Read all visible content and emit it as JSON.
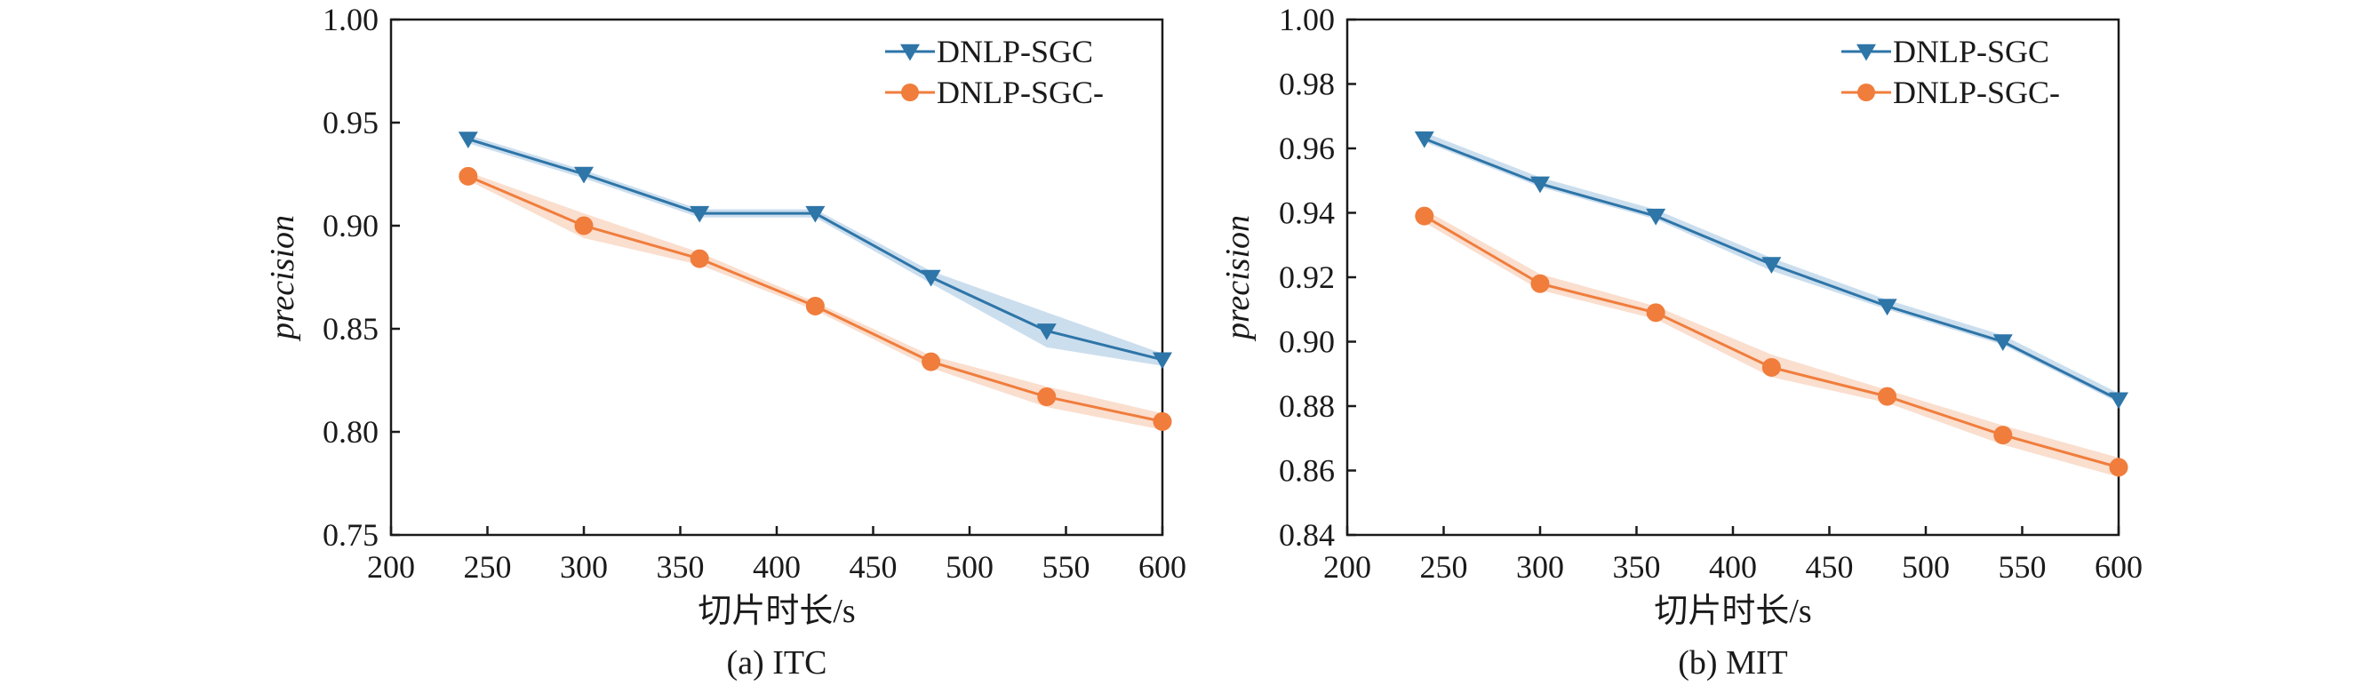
{
  "colors": {
    "series1": "#2e75a8",
    "series1_band": "#a9c8e2",
    "series2": "#f07d3c",
    "series2_band": "#f7c8ad",
    "axis": "#1a1a1a"
  },
  "chart_data": [
    {
      "type": "line",
      "caption": "(a)  ITC",
      "xlabel": "切片时长/s",
      "ylabel": "precision",
      "xlim": [
        200,
        600
      ],
      "ylim": [
        0.75,
        1.0
      ],
      "xticks": [
        "200",
        "250",
        "300",
        "350",
        "400",
        "450",
        "500",
        "550",
        "600"
      ],
      "yticks": [
        "0.75",
        "0.80",
        "0.85",
        "0.90",
        "0.95",
        "1.00"
      ],
      "legend": "top-right",
      "grid": false,
      "x": [
        240,
        300,
        360,
        420,
        480,
        540,
        600
      ],
      "series": [
        {
          "name": "DNLP-SGC",
          "marker": "triangle-down",
          "values": [
            0.942,
            0.925,
            0.906,
            0.906,
            0.875,
            0.849,
            0.835
          ],
          "band_low": [
            0.94,
            0.923,
            0.904,
            0.904,
            0.872,
            0.841,
            0.832
          ],
          "band_high": [
            0.944,
            0.927,
            0.908,
            0.908,
            0.878,
            0.858,
            0.838
          ]
        },
        {
          "name": "DNLP-SGC-",
          "marker": "circle",
          "values": [
            0.924,
            0.9,
            0.884,
            0.861,
            0.834,
            0.817,
            0.805
          ],
          "band_low": [
            0.922,
            0.894,
            0.881,
            0.859,
            0.831,
            0.812,
            0.801
          ],
          "band_high": [
            0.926,
            0.906,
            0.887,
            0.863,
            0.837,
            0.822,
            0.809
          ]
        }
      ]
    },
    {
      "type": "line",
      "caption": "(b)  MIT",
      "xlabel": "切片时长/s",
      "ylabel": "precision",
      "xlim": [
        200,
        600
      ],
      "ylim": [
        0.84,
        1.0
      ],
      "xticks": [
        "200",
        "250",
        "300",
        "350",
        "400",
        "450",
        "500",
        "550",
        "600"
      ],
      "yticks": [
        "0.84",
        "0.86",
        "0.88",
        "0.90",
        "0.92",
        "0.94",
        "0.96",
        "0.98",
        "1.00"
      ],
      "legend": "top-right",
      "grid": false,
      "x": [
        240,
        300,
        360,
        420,
        480,
        540,
        600
      ],
      "series": [
        {
          "name": "DNLP-SGC",
          "marker": "triangle-down",
          "values": [
            0.963,
            0.949,
            0.939,
            0.924,
            0.911,
            0.9,
            0.882
          ],
          "band_low": [
            0.962,
            0.948,
            0.938,
            0.922,
            0.91,
            0.899,
            0.881
          ],
          "band_high": [
            0.965,
            0.951,
            0.941,
            0.926,
            0.913,
            0.902,
            0.884
          ]
        },
        {
          "name": "DNLP-SGC-",
          "marker": "circle",
          "values": [
            0.939,
            0.918,
            0.909,
            0.892,
            0.883,
            0.871,
            0.861
          ],
          "band_low": [
            0.937,
            0.916,
            0.907,
            0.889,
            0.881,
            0.868,
            0.858
          ],
          "band_high": [
            0.941,
            0.921,
            0.911,
            0.896,
            0.885,
            0.874,
            0.864
          ]
        }
      ]
    }
  ]
}
